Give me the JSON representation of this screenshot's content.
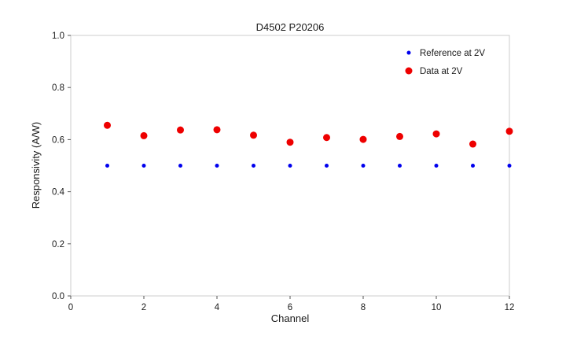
{
  "chart_data": {
    "type": "scatter",
    "title": "D4502 P20206",
    "xlabel": "Channel",
    "ylabel": "Responsivity (A/W)",
    "xlim": [
      0,
      12
    ],
    "ylim": [
      0.0,
      1.0
    ],
    "xticks": [
      0,
      2,
      4,
      6,
      8,
      10,
      12
    ],
    "yticks": [
      0.0,
      0.2,
      0.4,
      0.6,
      0.8,
      1.0
    ],
    "grid": false,
    "legend_position": "upper right",
    "x": [
      1,
      2,
      3,
      4,
      5,
      6,
      7,
      8,
      9,
      10,
      11,
      12
    ],
    "series": [
      {
        "name": "Reference at 2V",
        "color": "#0000ee",
        "marker_size": 2.5,
        "values": [
          0.5,
          0.5,
          0.5,
          0.5,
          0.5,
          0.5,
          0.5,
          0.5,
          0.5,
          0.5,
          0.5,
          0.5
        ]
      },
      {
        "name": "Data at 2V",
        "color": "#ee0000",
        "marker_size": 4.5,
        "values": [
          0.655,
          0.615,
          0.637,
          0.638,
          0.617,
          0.59,
          0.608,
          0.601,
          0.612,
          0.622,
          0.583,
          0.632
        ]
      }
    ],
    "frame_color": "#cccccc",
    "tick_color": "#555555",
    "text_color": "#1a1a1a"
  }
}
